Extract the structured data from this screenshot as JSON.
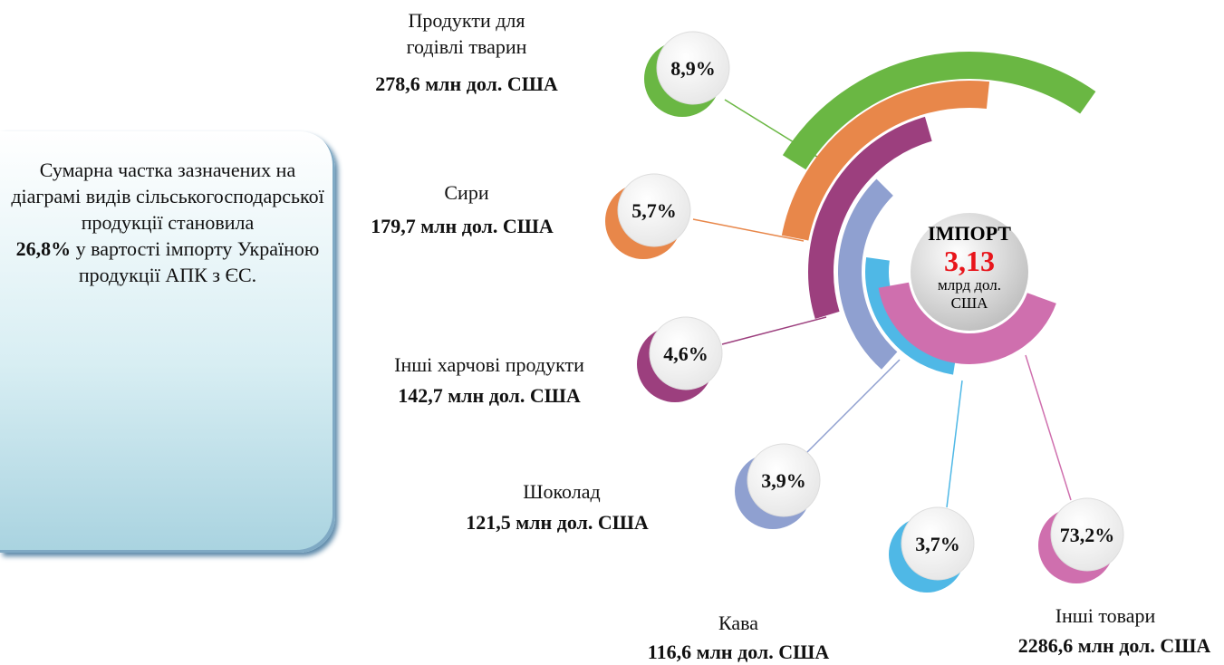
{
  "chart_data": {
    "type": "radial-bar",
    "categories": [
      "Продукти для годівлі тварин",
      "Сири",
      "Інші харчові продукти",
      "Шоколад",
      "Кава",
      "Інші товари"
    ],
    "values": [
      8.9,
      5.7,
      4.6,
      3.9,
      3.7,
      73.2
    ],
    "value_labels": [
      "8,9%",
      "5,7%",
      "4,6%",
      "3,9%",
      "3,7%",
      "73,2%"
    ],
    "amounts": [
      278.6,
      179.7,
      142.7,
      121.5,
      116.6,
      2286.6
    ],
    "amount_labels": [
      "278,6 млн дол. США",
      "179,7 млн дол. США",
      "142,7 млн дол. США",
      "121,5 млн дол. США",
      "116,6 млн дол. США",
      "2286,6 млн дол. США"
    ],
    "colors": [
      "#6ab743",
      "#e8874a",
      "#9c3f7e",
      "#8fa0d0",
      "#4fb8e6",
      "#cf6fae"
    ],
    "center": {
      "title": "ІМПОРТ",
      "total": 3.13,
      "total_label": "3,13",
      "unit": "млрд дол. США"
    },
    "note": {
      "before": "Сумарна частка зазначених на діаграмі видів сільськогосподарської продукції становила",
      "highlight": "26,8%",
      "after": "у вартості імпорту Україною продукції АПК з ЄС."
    }
  }
}
